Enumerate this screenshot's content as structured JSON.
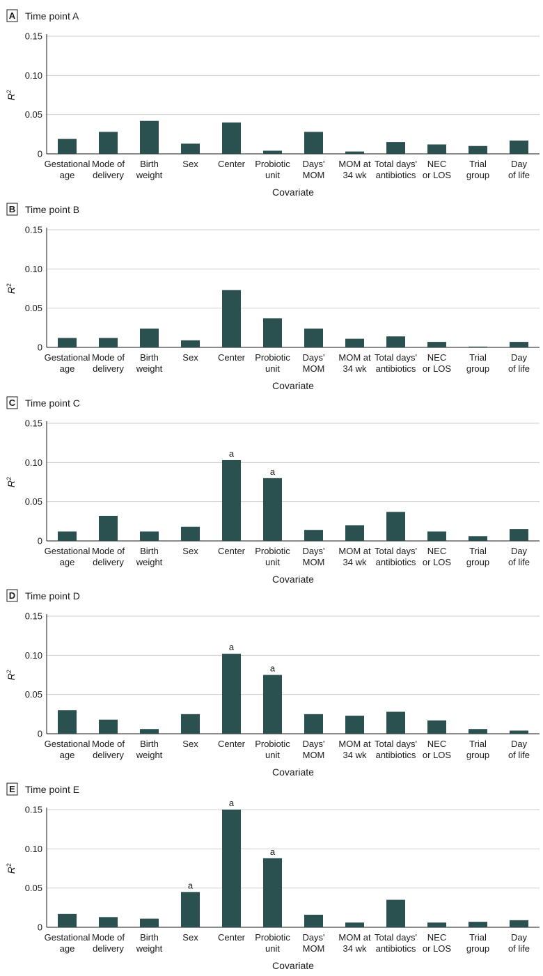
{
  "figure": {
    "covariate_label": "Covariate",
    "ylabel_base": "R",
    "ylabel_sup": "2",
    "significance_marker": "a",
    "bar_color": "#2a5050"
  },
  "chart_data": [
    {
      "type": "bar",
      "panel": "A",
      "title": "Time point A",
      "xlabel": "Covariate",
      "ylabel": "R2",
      "ylim": [
        0,
        0.15
      ],
      "yticks": [
        "0",
        "0.05",
        "0.10",
        "0.15"
      ],
      "categories": [
        [
          "Gestational",
          "age"
        ],
        [
          "Mode of",
          "delivery"
        ],
        [
          "Birth",
          "weight"
        ],
        [
          "Sex"
        ],
        [
          "Center"
        ],
        [
          "Probiotic",
          "unit"
        ],
        [
          "Days'",
          "MOM"
        ],
        [
          "MOM at",
          "34 wk"
        ],
        [
          "Total days'",
          "antibiotics"
        ],
        [
          "NEC",
          "or LOS"
        ],
        [
          "Trial",
          "group"
        ],
        [
          "Day",
          "of life"
        ]
      ],
      "values": [
        0.019,
        0.028,
        0.042,
        0.013,
        0.04,
        0.004,
        0.028,
        0.003,
        0.015,
        0.012,
        0.01,
        0.017
      ],
      "significant": [
        false,
        false,
        false,
        false,
        false,
        false,
        false,
        false,
        false,
        false,
        false,
        false
      ]
    },
    {
      "type": "bar",
      "panel": "B",
      "title": "Time point B",
      "xlabel": "Covariate",
      "ylabel": "R2",
      "ylim": [
        0,
        0.15
      ],
      "yticks": [
        "0",
        "0.05",
        "0.10",
        "0.15"
      ],
      "categories": [
        [
          "Gestational",
          "age"
        ],
        [
          "Mode of",
          "delivery"
        ],
        [
          "Birth",
          "weight"
        ],
        [
          "Sex"
        ],
        [
          "Center"
        ],
        [
          "Probiotic",
          "unit"
        ],
        [
          "Days'",
          "MOM"
        ],
        [
          "MOM at",
          "34 wk"
        ],
        [
          "Total days'",
          "antibiotics"
        ],
        [
          "NEC",
          "or LOS"
        ],
        [
          "Trial",
          "group"
        ],
        [
          "Day",
          "of life"
        ]
      ],
      "values": [
        0.012,
        0.012,
        0.024,
        0.009,
        0.073,
        0.037,
        0.024,
        0.011,
        0.014,
        0.007,
        0.001,
        0.007
      ],
      "significant": [
        false,
        false,
        false,
        false,
        false,
        false,
        false,
        false,
        false,
        false,
        false,
        false
      ]
    },
    {
      "type": "bar",
      "panel": "C",
      "title": "Time point C",
      "xlabel": "Covariate",
      "ylabel": "R2",
      "ylim": [
        0,
        0.15
      ],
      "yticks": [
        "0",
        "0.05",
        "0.10",
        "0.15"
      ],
      "categories": [
        [
          "Gestational",
          "age"
        ],
        [
          "Mode of",
          "delivery"
        ],
        [
          "Birth",
          "weight"
        ],
        [
          "Sex"
        ],
        [
          "Center"
        ],
        [
          "Probiotic",
          "unit"
        ],
        [
          "Days'",
          "MOM"
        ],
        [
          "MOM at",
          "34 wk"
        ],
        [
          "Total days'",
          "antibiotics"
        ],
        [
          "NEC",
          "or LOS"
        ],
        [
          "Trial",
          "group"
        ],
        [
          "Day",
          "of life"
        ]
      ],
      "values": [
        0.012,
        0.032,
        0.012,
        0.018,
        0.103,
        0.08,
        0.014,
        0.02,
        0.037,
        0.012,
        0.006,
        0.015
      ],
      "significant": [
        false,
        false,
        false,
        false,
        true,
        true,
        false,
        false,
        false,
        false,
        false,
        false
      ]
    },
    {
      "type": "bar",
      "panel": "D",
      "title": "Time point D",
      "xlabel": "Covariate",
      "ylabel": "R2",
      "ylim": [
        0,
        0.15
      ],
      "yticks": [
        "0",
        "0.05",
        "0.10",
        "0.15"
      ],
      "categories": [
        [
          "Gestational",
          "age"
        ],
        [
          "Mode of",
          "delivery"
        ],
        [
          "Birth",
          "weight"
        ],
        [
          "Sex"
        ],
        [
          "Center"
        ],
        [
          "Probiotic",
          "unit"
        ],
        [
          "Days'",
          "MOM"
        ],
        [
          "MOM at",
          "34 wk"
        ],
        [
          "Total days'",
          "antibiotics"
        ],
        [
          "NEC",
          "or LOS"
        ],
        [
          "Trial",
          "group"
        ],
        [
          "Day",
          "of life"
        ]
      ],
      "values": [
        0.03,
        0.018,
        0.006,
        0.025,
        0.102,
        0.075,
        0.025,
        0.023,
        0.028,
        0.017,
        0.006,
        0.004
      ],
      "significant": [
        false,
        false,
        false,
        false,
        true,
        true,
        false,
        false,
        false,
        false,
        false,
        false
      ]
    },
    {
      "type": "bar",
      "panel": "E",
      "title": "Time point E",
      "xlabel": "Covariate",
      "ylabel": "R2",
      "ylim": [
        0,
        0.15
      ],
      "yticks": [
        "0",
        "0.05",
        "0.10",
        "0.15"
      ],
      "categories": [
        [
          "Gestational",
          "age"
        ],
        [
          "Mode of",
          "delivery"
        ],
        [
          "Birth",
          "weight"
        ],
        [
          "Sex"
        ],
        [
          "Center"
        ],
        [
          "Probiotic",
          "unit"
        ],
        [
          "Days'",
          "MOM"
        ],
        [
          "MOM at",
          "34 wk"
        ],
        [
          "Total days'",
          "antibiotics"
        ],
        [
          "NEC",
          "or LOS"
        ],
        [
          "Trial",
          "group"
        ],
        [
          "Day",
          "of life"
        ]
      ],
      "values": [
        0.017,
        0.013,
        0.011,
        0.045,
        0.15,
        0.088,
        0.016,
        0.006,
        0.035,
        0.006,
        0.007,
        0.009
      ],
      "significant": [
        false,
        false,
        false,
        true,
        true,
        true,
        false,
        false,
        false,
        false,
        false,
        false
      ]
    }
  ]
}
